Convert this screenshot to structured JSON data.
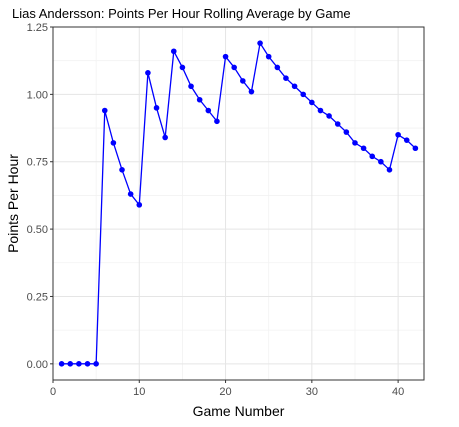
{
  "chart_data": {
    "type": "line",
    "title": "Lias Andersson: Points Per Hour Rolling Average by Game",
    "xlabel": "Game Number",
    "ylabel": "Points Per Hour",
    "xlim": [
      0,
      43
    ],
    "ylim": [
      -0.06,
      1.25
    ],
    "x_ticks": [
      0,
      10,
      20,
      30,
      40
    ],
    "x_tick_labels": [
      "0",
      "10",
      "20",
      "30",
      "40"
    ],
    "y_ticks": [
      0,
      0.25,
      0.5,
      0.75,
      1.0,
      1.25
    ],
    "y_tick_labels": [
      "0.00",
      "0.25",
      "0.50",
      "0.75",
      "1.00",
      "1.25"
    ],
    "grid": true,
    "series_color": "#0000ff",
    "x": [
      1,
      2,
      3,
      4,
      5,
      6,
      7,
      8,
      9,
      10,
      11,
      12,
      13,
      14,
      15,
      16,
      17,
      18,
      19,
      20,
      21,
      22,
      23,
      24,
      25,
      26,
      27,
      28,
      29,
      30,
      31,
      32,
      33,
      34,
      35,
      36,
      37,
      38,
      39,
      40,
      41,
      42
    ],
    "y": [
      0.0,
      0.0,
      0.0,
      0.0,
      0.0,
      0.94,
      0.82,
      0.72,
      0.63,
      0.59,
      1.08,
      0.95,
      0.84,
      1.16,
      1.1,
      1.03,
      0.98,
      0.94,
      0.9,
      1.14,
      1.1,
      1.05,
      1.01,
      1.19,
      1.14,
      1.1,
      1.06,
      1.03,
      1.0,
      0.97,
      0.94,
      0.92,
      0.89,
      0.86,
      0.82,
      0.8,
      0.77,
      0.75,
      0.72,
      0.85,
      0.83,
      0.8
    ]
  }
}
